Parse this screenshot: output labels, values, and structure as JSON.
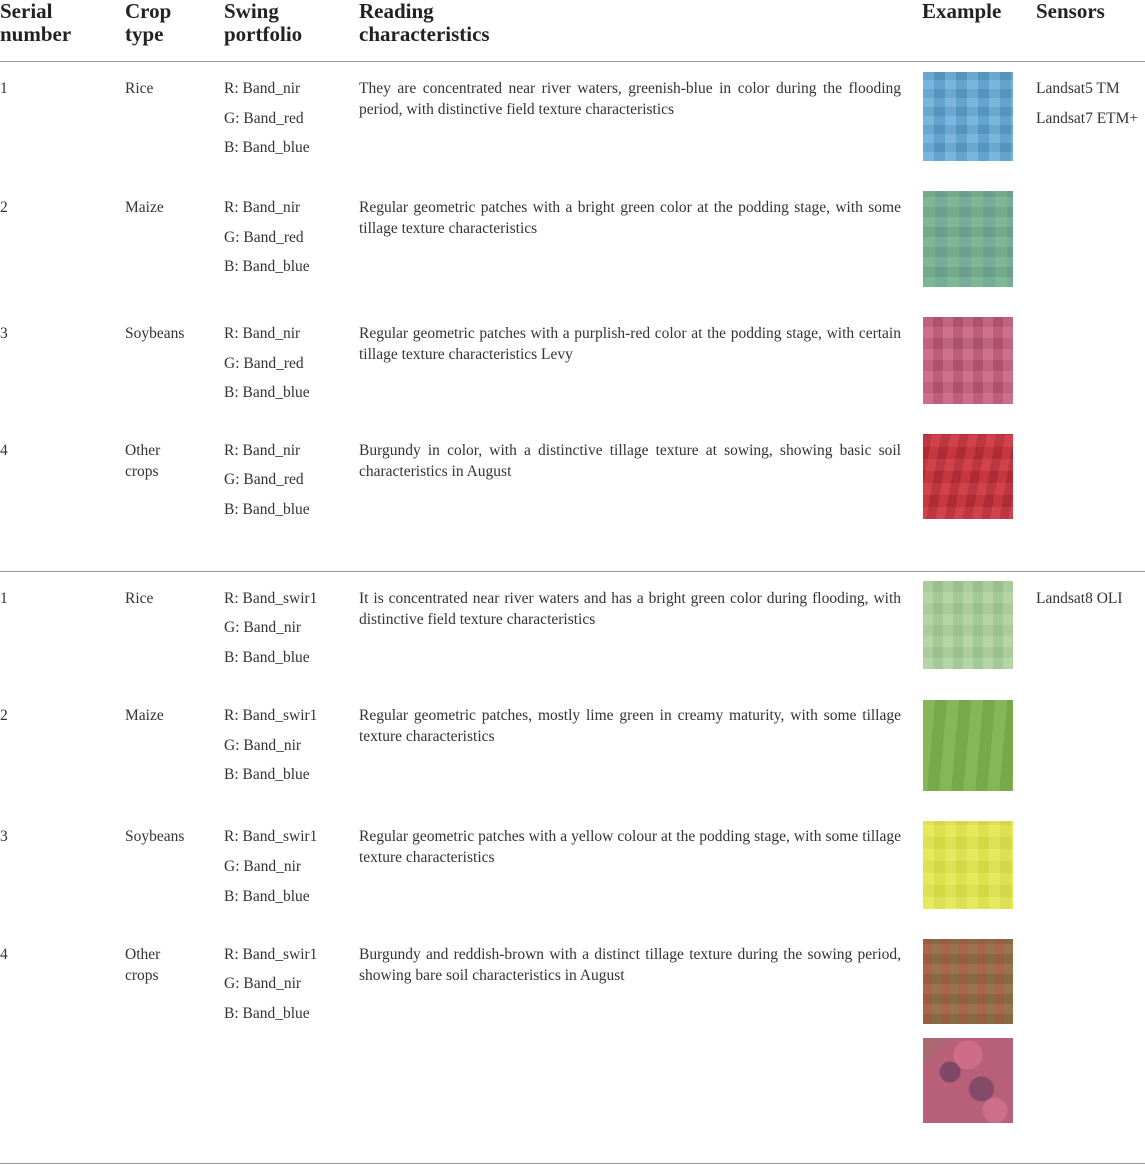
{
  "headers": {
    "serial": "Serial\nnumber",
    "crop": "Crop\ntype",
    "swing": "Swing\nportfolio",
    "reading": "Reading\ncharacteristics",
    "example": "Example",
    "sensors": "Sensors"
  },
  "groups": [
    {
      "sensors": [
        "Landsat5 TM",
        "Landsat7 ETM+"
      ],
      "rows": [
        {
          "serial": "1",
          "crop": "Rice",
          "bands": [
            "R: Band_nir",
            "G: Band_red",
            "B: Band_blue"
          ],
          "description": "They are concentrated near river waters, greenish-blue in color during the flooding period, with distinctive field texture characteristics",
          "swatch_color": "#5ea6d6"
        },
        {
          "serial": "2",
          "crop": "Maize",
          "bands": [
            "R: Band_nir",
            "G: Band_red",
            "B: Band_blue"
          ],
          "description": "Regular geometric patches with a bright green color at the podding stage, with some tillage texture characteristics",
          "swatch_color": "#6fae8f"
        },
        {
          "serial": "3",
          "crop": "Soybeans",
          "bands": [
            "R: Band_nir",
            "G: Band_red",
            "B: Band_blue"
          ],
          "description": "Regular geometric patches with a purplish-red color at the podding stage, with certain tillage texture characteristics Levy",
          "swatch_color": "#c45b7c"
        },
        {
          "serial": "4",
          "crop": "Other\ncrops",
          "bands": [
            "R: Band_nir",
            "G: Band_red",
            "B: Band_blue"
          ],
          "description": "Burgundy in color, with a distinctive tillage texture at sowing, showing basic soil characteristics in August",
          "swatch_color": "#c9323c"
        }
      ]
    },
    {
      "sensors": [
        "Landsat8 OLI"
      ],
      "rows": [
        {
          "serial": "1",
          "crop": "Rice",
          "bands": [
            "R: Band_swir1",
            "G: Band_nir",
            "B: Band_blue"
          ],
          "description": "It is concentrated near river waters and has a bright green color during flooding, with distinctive field texture characteristics",
          "swatch_color": "#a6cc94"
        },
        {
          "serial": "2",
          "crop": "Maize",
          "bands": [
            "R: Band_swir1",
            "G: Band_nir",
            "B: Band_blue"
          ],
          "description": "Regular geometric patches, mostly lime green in creamy maturity, with some tillage texture characteristics",
          "swatch_color": "#7db24e"
        },
        {
          "serial": "3",
          "crop": "Soybeans",
          "bands": [
            "R: Band_swir1",
            "G: Band_nir",
            "B: Band_blue"
          ],
          "description": "Regular geometric patches with a yellow colour at the podding stage, with some tillage texture characteristics",
          "swatch_color": "#e3e64a"
        },
        {
          "serial": "4",
          "crop": "Other\ncrops",
          "bands": [
            "R: Band_swir1",
            "G: Band_nir",
            "B: Band_blue"
          ],
          "description": "Burgundy and reddish-brown with a distinct tillage texture during the sowing period, showing bare soil characteristics in August",
          "swatch_color": "#9a6a4a",
          "swatch_color_2": "#b8607a"
        }
      ]
    }
  ]
}
